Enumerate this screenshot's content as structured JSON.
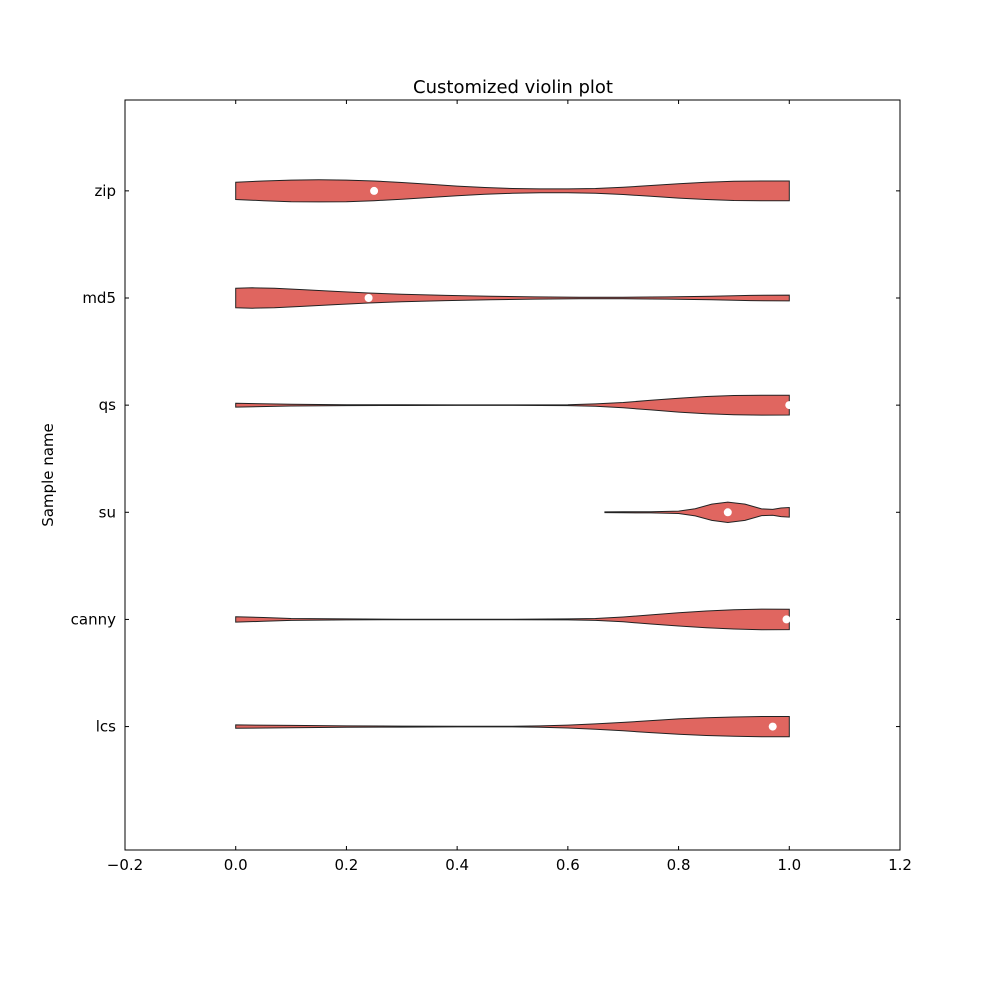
{
  "chart_data": {
    "type": "violin",
    "orientation": "horizontal",
    "title": "Customized violin plot",
    "xlabel": "",
    "ylabel": "Sample name",
    "xlim": [
      -0.2,
      1.2
    ],
    "x_ticks": [
      -0.2,
      0.0,
      0.2,
      0.4,
      0.6,
      0.8,
      1.0,
      1.2
    ],
    "x_tick_labels": [
      "−0.2",
      "0.0",
      "0.2",
      "0.4",
      "0.6",
      "0.8",
      "1.0",
      "1.2"
    ],
    "categories": [
      "zip",
      "md5",
      "qs",
      "su",
      "canny",
      "lcs"
    ],
    "grid": false,
    "colors": {
      "fill": "#e06660",
      "edge": "#222222",
      "median_marker": "#ffffff"
    },
    "series": [
      {
        "category": "zip",
        "min": 0.0,
        "max": 1.0,
        "median": 0.25,
        "density": [
          [
            0.0,
            0.72
          ],
          [
            0.05,
            0.82
          ],
          [
            0.1,
            0.9
          ],
          [
            0.15,
            0.92
          ],
          [
            0.2,
            0.9
          ],
          [
            0.25,
            0.82
          ],
          [
            0.3,
            0.7
          ],
          [
            0.35,
            0.55
          ],
          [
            0.4,
            0.4
          ],
          [
            0.45,
            0.28
          ],
          [
            0.5,
            0.2
          ],
          [
            0.55,
            0.16
          ],
          [
            0.6,
            0.16
          ],
          [
            0.65,
            0.2
          ],
          [
            0.7,
            0.3
          ],
          [
            0.75,
            0.45
          ],
          [
            0.8,
            0.6
          ],
          [
            0.85,
            0.72
          ],
          [
            0.9,
            0.8
          ],
          [
            0.95,
            0.82
          ],
          [
            1.0,
            0.82
          ]
        ]
      },
      {
        "category": "md5",
        "min": 0.0,
        "max": 1.0,
        "median": 0.24,
        "density": [
          [
            0.0,
            0.82
          ],
          [
            0.03,
            0.85
          ],
          [
            0.07,
            0.82
          ],
          [
            0.12,
            0.7
          ],
          [
            0.18,
            0.55
          ],
          [
            0.24,
            0.42
          ],
          [
            0.3,
            0.32
          ],
          [
            0.38,
            0.22
          ],
          [
            0.46,
            0.14
          ],
          [
            0.54,
            0.09
          ],
          [
            0.62,
            0.07
          ],
          [
            0.7,
            0.07
          ],
          [
            0.78,
            0.09
          ],
          [
            0.86,
            0.15
          ],
          [
            0.93,
            0.22
          ],
          [
            1.0,
            0.24
          ]
        ]
      },
      {
        "category": "qs",
        "min": 0.0,
        "max": 1.0,
        "median": 1.0,
        "density": [
          [
            0.0,
            0.16
          ],
          [
            0.1,
            0.07
          ],
          [
            0.2,
            0.04
          ],
          [
            0.3,
            0.03
          ],
          [
            0.4,
            0.02
          ],
          [
            0.5,
            0.02
          ],
          [
            0.6,
            0.04
          ],
          [
            0.65,
            0.1
          ],
          [
            0.7,
            0.22
          ],
          [
            0.75,
            0.4
          ],
          [
            0.8,
            0.58
          ],
          [
            0.85,
            0.72
          ],
          [
            0.9,
            0.8
          ],
          [
            0.95,
            0.83
          ],
          [
            1.0,
            0.82
          ]
        ]
      },
      {
        "category": "su",
        "min": 0.667,
        "max": 1.0,
        "median": 0.889,
        "density": [
          [
            0.667,
            0.03
          ],
          [
            0.7,
            0.04
          ],
          [
            0.75,
            0.05
          ],
          [
            0.8,
            0.1
          ],
          [
            0.83,
            0.3
          ],
          [
            0.86,
            0.68
          ],
          [
            0.889,
            0.85
          ],
          [
            0.92,
            0.68
          ],
          [
            0.95,
            0.28
          ],
          [
            0.97,
            0.24
          ],
          [
            0.985,
            0.36
          ],
          [
            1.0,
            0.4
          ]
        ]
      },
      {
        "category": "canny",
        "min": 0.0,
        "max": 1.0,
        "median": 0.995,
        "density": [
          [
            0.0,
            0.22
          ],
          [
            0.05,
            0.16
          ],
          [
            0.1,
            0.08
          ],
          [
            0.2,
            0.04
          ],
          [
            0.3,
            0.02
          ],
          [
            0.4,
            0.02
          ],
          [
            0.5,
            0.02
          ],
          [
            0.6,
            0.04
          ],
          [
            0.65,
            0.08
          ],
          [
            0.7,
            0.2
          ],
          [
            0.75,
            0.38
          ],
          [
            0.8,
            0.55
          ],
          [
            0.85,
            0.7
          ],
          [
            0.9,
            0.8
          ],
          [
            0.95,
            0.86
          ],
          [
            1.0,
            0.85
          ]
        ]
      },
      {
        "category": "lcs",
        "min": 0.0,
        "max": 1.0,
        "median": 0.97,
        "density": [
          [
            0.0,
            0.14
          ],
          [
            0.1,
            0.1
          ],
          [
            0.2,
            0.06
          ],
          [
            0.3,
            0.04
          ],
          [
            0.4,
            0.03
          ],
          [
            0.5,
            0.03
          ],
          [
            0.55,
            0.06
          ],
          [
            0.6,
            0.12
          ],
          [
            0.65,
            0.22
          ],
          [
            0.7,
            0.35
          ],
          [
            0.75,
            0.5
          ],
          [
            0.8,
            0.64
          ],
          [
            0.85,
            0.74
          ],
          [
            0.9,
            0.8
          ],
          [
            0.95,
            0.84
          ],
          [
            1.0,
            0.84
          ]
        ]
      }
    ]
  }
}
